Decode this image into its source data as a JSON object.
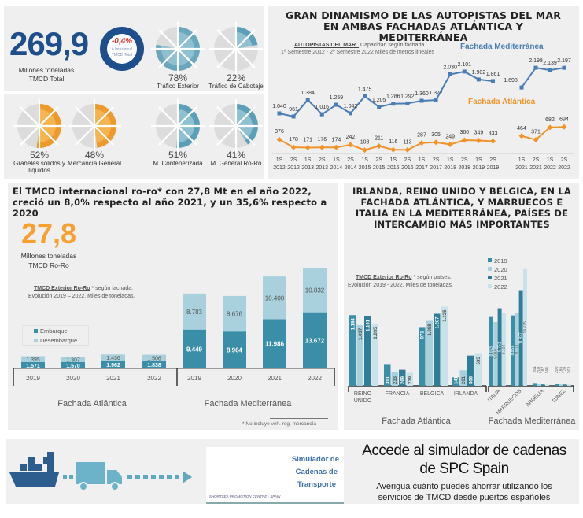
{
  "kpi_total": {
    "value": "269,9",
    "label_1": "Millones toneladas",
    "label_2": "TMCD Total",
    "change": "-0,4%",
    "change_label_1": "Δ Interanual",
    "change_label_2": "TMCD Total"
  },
  "pies": [
    {
      "pct": 78,
      "label": "78%",
      "name": "Tráfico Exterior",
      "color": "#8fc0d2",
      "dark": "#6aa7bd"
    },
    {
      "pct": 22,
      "label": "22%",
      "name": "Tráfico de Cabotaje",
      "color": "#8fc0d2",
      "dark": "#5c9fb8"
    },
    {
      "pct": 52,
      "label": "52%",
      "name": "Graneles sólidos y",
      "name2": "líquidos",
      "color": "#f6b450",
      "dark": "#ee9a2a"
    },
    {
      "pct": 48,
      "label": "48%",
      "name": "Mercancía General",
      "name2": "",
      "color": "#f6b450",
      "dark": "#ee9a2a"
    },
    {
      "pct": 51,
      "label": "51%",
      "name": "M. Contenerizada",
      "name2": "",
      "color": "#8fc0d2",
      "dark": "#5c9fb8"
    },
    {
      "pct": 41,
      "label": "41%",
      "name": "M. General Ro-Ro",
      "name2": "",
      "color": "#8fc0d2",
      "dark": "#5c9fb8"
    }
  ],
  "colors": {
    "blue_dark": "#1f4e8c",
    "orange": "#f5a030",
    "med_line": "#4a7db5",
    "atl_line": "#f0932b",
    "bar_dark": "#3a8ea8",
    "bar_light": "#a9d1dd",
    "bar_2021": "#2f7d97",
    "bar_2022": "#c8e2ea"
  },
  "chart_data": [
    {
      "type": "line",
      "title": "GRAN DINAMISMO DE LAS AUTOPISTAS DEL MAR EN AMBAS FACHADAS ATLÁNTICA Y MEDITERRÁNEA",
      "subtitle_bold": "AUTOPISTAS DEL MAR .",
      "subtitle_rest": "Capacidad  según fachada",
      "subtitle_2": "1º Semestre 2012 -  2º Semestre 2022 Miles de metros lineales",
      "x_top": [
        "1S",
        "2S",
        "1S",
        "2S",
        "1S",
        "2S",
        "1S",
        "2S",
        "1S",
        "2S",
        "1S",
        "2S",
        "1S",
        "2S",
        "1S",
        "2S",
        "1S",
        "2S",
        "1S",
        "2S"
      ],
      "x_bottom": [
        "2012",
        "2012",
        "2013",
        "2013",
        "2014",
        "2014",
        "2015",
        "2015",
        "2016",
        "2016",
        "2017",
        "2017",
        "2018",
        "2018",
        "2019",
        "2019",
        "2021",
        "2021",
        "2022",
        "2022"
      ],
      "series": [
        {
          "name": "Fachada Mediterránea",
          "values": [
            1040,
            961,
            1384,
            1016,
            1259,
            1042,
            1475,
            1205,
            1286,
            1292,
            1360,
            1377,
            2030,
            2101,
            1902,
            1861,
            1698,
            2198,
            2139,
            2197
          ],
          "labels": [
            "1.040",
            "961",
            "1.384",
            "1.016",
            "1.259",
            "1.042",
            "1.475",
            "1.205",
            "1.286",
            "1.292",
            "1.360",
            "1.377",
            "2.030",
            "2.101",
            "1.902",
            "1.861",
            "1.698",
            "2.198",
            "2.139",
            "2.197"
          ]
        },
        {
          "name": "Fachada Atlántica",
          "values": [
            376,
            178,
            171,
            176,
            174,
            242,
            108,
            211,
            116,
            113,
            287,
            305,
            249,
            360,
            349,
            333,
            464,
            371,
            682,
            694
          ],
          "labels": [
            "376",
            "178",
            "171",
            "176",
            "174",
            "242",
            "108",
            "211",
            "116",
            "113",
            "287",
            "305",
            "249",
            "360",
            "349",
            "333",
            "464",
            "371",
            "682",
            "694"
          ]
        }
      ]
    },
    {
      "type": "bar",
      "stacked": true,
      "headline": "El TMCD internacional ro-ro* con 27,8 Mt en el año 2022, creció un 8,0% respecto al año 2021, y un 35,6% respecto a 2020",
      "kpi": "27,8",
      "kpi_label_1": "Millones toneladas",
      "kpi_label_2": "TMCD Ro-Ro",
      "subtitle_bold": "TMCD Exterior Ro-Ro",
      "subtitle_rest": "* según fachada.",
      "subtitle_2": "Evolución 2019 – 2022. Miles de toneladas.",
      "groups": [
        "Fachada Atlántica",
        "Fachada Mediterránea"
      ],
      "categories": [
        "2019",
        "2020",
        "2021",
        "2022"
      ],
      "series": [
        {
          "name": "Embarque",
          "atlantica": [
            1571,
            1570,
            1962,
            1838
          ],
          "mediterranea": [
            9449,
            8964,
            11986,
            13672
          ],
          "atl_labels": [
            "1.571",
            "1.570",
            "1.962",
            "1.838"
          ],
          "med_labels": [
            "9.449",
            "8.964",
            "11.986",
            "13.672"
          ]
        },
        {
          "name": "Desembarque",
          "atlantica": [
            1395,
            1307,
            1436,
            1506
          ],
          "mediterranea": [
            8783,
            8676,
            10400,
            10832
          ],
          "atl_labels": [
            "1.395",
            "1.307",
            "1.436",
            "1.506"
          ],
          "med_labels": [
            "8.783",
            "8.676",
            "10.400",
            "10.832"
          ]
        }
      ],
      "footnote": "* No incluye veh. reg. mercancía"
    },
    {
      "type": "bar",
      "headline": "IRLANDA, REINO UNIDO Y BÉLGICA, EN LA FACHADA ATLÁNTICA, Y MARRUECOS E ITALIA EN LA MEDITERRÁNEA, PAÍSES DE INTERCAMBIO MÁS IMPORTANTES",
      "subtitle_bold": "TMCD Exterior Ro-Ro",
      "subtitle_rest": "* según países.",
      "subtitle_2": "Evolución 2019 - 2022. Miles de toneladas.",
      "legend": [
        "2019",
        "2020",
        "2021",
        "2022"
      ],
      "groups": [
        "Fachada Atlántica",
        "Fachada Mediterránea"
      ],
      "atlantica": [
        {
          "country": "REINO",
          "country2": "UNIDO",
          "values": [
            1184,
            1017,
            1161,
            1035
          ],
          "labels": [
            "1.184",
            "1.017",
            "1.161",
            "1.035"
          ]
        },
        {
          "country": "FRANCIA",
          "country2": "",
          "values": [
            351,
            233,
            269,
            219
          ],
          "labels": [
            "351",
            "233",
            "269",
            "219"
          ]
        },
        {
          "country": "BELGICA",
          "country2": "",
          "values": [
            971,
            1088,
            1207,
            1325
          ],
          "labels": [
            "971",
            "1.088",
            "1.207",
            "1.325"
          ]
        },
        {
          "country": "IRLANDA",
          "country2": "",
          "values": [
            141,
            261,
            506,
            535
          ],
          "labels": [
            "141",
            "261",
            "506",
            "535"
          ]
        }
      ],
      "mediterranea": [
        {
          "country": "ITALIA",
          "values": [
            8653,
            8010,
            9751,
            9104
          ],
          "labels": [
            "8.653",
            "8.010",
            "9.751",
            "9.104"
          ]
        },
        {
          "country": "MARRUECOS",
          "values": [
            8851,
            9171,
            11927,
            14675
          ],
          "labels": [
            "8.851",
            "9.171",
            "11.927",
            "14.675"
          ]
        },
        {
          "country": "ARGELIA",
          "values": [
            261,
            203,
            182,
            148
          ],
          "labels": [
            "261",
            "203",
            "182",
            "148"
          ]
        },
        {
          "country": "TUNEZ",
          "values": [
            200,
            186,
            170,
            163
          ],
          "labels": [
            "200",
            "186",
            "170",
            "163"
          ]
        }
      ]
    }
  ],
  "banner": {
    "logo_line_1": "Simulador de",
    "logo_line_2": "Cadenas de",
    "logo_line_3": "Transporte",
    "logo_footer": "SHORTSEA PROMOTION CENTRE - SPAIN",
    "title_1": "Accede al simulador de cadenas",
    "title_2": "de SPC Spain",
    "text_1": "Averigua cuánto puedes ahorrar utilizando los",
    "text_2": "servicios de TMCD desde puertos españoles"
  }
}
